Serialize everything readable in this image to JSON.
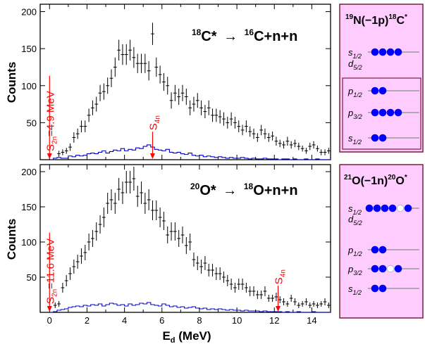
{
  "chart_data": [
    {
      "type": "histogram",
      "reaction_main": "C*",
      "reaction_prefix": "18",
      "reaction_arrow": "→",
      "reaction_product_mass": "16",
      "reaction_product": "C+n+n",
      "ylabel": "Counts",
      "xlim": [
        -0.5,
        15
      ],
      "ylim": [
        0,
        210
      ],
      "yticks": [
        "50",
        "100",
        "150",
        "200"
      ],
      "threshold_1": {
        "label_main": "S",
        "label_sub": "2n",
        "label_rest": "=4.9 MeV",
        "x": 0.0
      },
      "threshold_2": {
        "label_main": "S",
        "label_sub": "4n",
        "x": 5.5
      },
      "threshold_color": "#ff0000",
      "points": {
        "x": [
          0.5,
          0.7,
          0.9,
          1.1,
          1.3,
          1.5,
          1.7,
          1.9,
          2.1,
          2.3,
          2.5,
          2.7,
          2.9,
          3.1,
          3.3,
          3.5,
          3.7,
          3.9,
          4.1,
          4.3,
          4.5,
          4.7,
          4.9,
          5.1,
          5.3,
          5.5,
          5.7,
          5.9,
          6.1,
          6.3,
          6.5,
          6.7,
          6.9,
          7.1,
          7.3,
          7.5,
          7.7,
          7.9,
          8.1,
          8.3,
          8.5,
          8.7,
          8.9,
          9.1,
          9.3,
          9.5,
          9.7,
          9.9,
          10.1,
          10.3,
          10.5,
          10.7,
          10.9,
          11.1,
          11.3,
          11.5,
          11.7,
          11.9,
          12.1,
          12.3,
          12.5,
          12.7,
          12.9,
          13.1,
          13.3,
          13.5,
          13.7,
          13.9,
          14.1,
          14.3,
          14.5,
          14.7,
          14.9
        ],
        "y": [
          8,
          10,
          12,
          17,
          30,
          35,
          45,
          45,
          60,
          70,
          75,
          90,
          92,
          100,
          110,
          125,
          148,
          142,
          142,
          148,
          138,
          130,
          130,
          130,
          120,
          170,
          125,
          115,
          105,
          100,
          80,
          90,
          85,
          90,
          85,
          70,
          75,
          80,
          70,
          65,
          70,
          60,
          60,
          58,
          55,
          50,
          55,
          50,
          45,
          40,
          45,
          38,
          35,
          30,
          40,
          35,
          30,
          32,
          25,
          22,
          20,
          25,
          20,
          22,
          18,
          15,
          12,
          18,
          20,
          15,
          10,
          10,
          12
        ],
        "err": [
          4,
          4,
          4,
          5,
          7,
          7,
          8,
          8,
          9,
          10,
          10,
          11,
          11,
          11,
          12,
          13,
          14,
          14,
          14,
          14,
          14,
          13,
          13,
          13,
          13,
          15,
          13,
          12,
          12,
          12,
          11,
          11,
          11,
          11,
          11,
          10,
          10,
          10,
          10,
          9,
          10,
          9,
          9,
          9,
          9,
          8,
          9,
          8,
          8,
          7,
          8,
          7,
          7,
          6,
          7,
          7,
          6,
          6,
          6,
          5,
          5,
          6,
          5,
          5,
          5,
          4,
          4,
          5,
          5,
          4,
          4,
          4,
          4
        ]
      },
      "hist": {
        "x": [
          0,
          0.2,
          0.4,
          0.6,
          0.8,
          1,
          1.2,
          1.4,
          1.6,
          1.8,
          2,
          2.2,
          2.4,
          2.6,
          2.8,
          3,
          3.2,
          3.4,
          3.6,
          3.8,
          4,
          4.2,
          4.4,
          4.6,
          4.8,
          5,
          5.2,
          5.4,
          5.6,
          5.8,
          6,
          6.2,
          6.4,
          6.6,
          6.8,
          7,
          7.2,
          7.4,
          7.6,
          7.8,
          8,
          8.2,
          8.4,
          8.6,
          8.8,
          9,
          9.2,
          9.4,
          9.6,
          9.8,
          10,
          10.2,
          10.4,
          10.6,
          10.8,
          11,
          11.2,
          11.4,
          11.6,
          11.8,
          12,
          12.2,
          12.4,
          12.6,
          12.8,
          13,
          13.2,
          13.4,
          13.6,
          13.8,
          14,
          14.2,
          14.4,
          14.6,
          14.8
        ],
        "y": [
          0,
          2,
          3,
          2,
          2,
          5,
          4,
          6,
          5,
          6,
          8,
          9,
          8,
          10,
          12,
          9,
          11,
          13,
          12,
          15,
          12,
          14,
          13,
          16,
          15,
          18,
          20,
          17,
          14,
          13,
          12,
          14,
          10,
          9,
          10,
          8,
          7,
          9,
          6,
          5,
          6,
          4,
          5,
          4,
          3,
          4,
          3,
          2,
          3,
          2,
          2,
          3,
          2,
          1,
          2,
          1,
          1,
          2,
          1,
          1,
          1,
          0,
          1,
          1,
          0,
          1,
          0,
          0,
          1,
          0,
          0,
          1,
          0,
          0,
          0
        ]
      }
    },
    {
      "type": "histogram",
      "reaction_main": "O*",
      "reaction_prefix": "20",
      "reaction_arrow": "→",
      "reaction_product_mass": "18",
      "reaction_product": "O+n+n",
      "ylabel": "Counts",
      "xlabel_main": "E",
      "xlabel_sub": "d",
      "xlabel_rest": " (MeV)",
      "xlim": [
        -0.5,
        15
      ],
      "ylim": [
        0,
        210
      ],
      "yticks": [
        "50",
        "100",
        "150",
        "200"
      ],
      "xticks": [
        "0",
        "2",
        "4",
        "6",
        "8",
        "10",
        "12",
        "14"
      ],
      "threshold_1": {
        "label_main": "S",
        "label_sub": "2n",
        "label_rest": "=11.6 MeV",
        "x": 0.0
      },
      "threshold_2": {
        "label_main": "S",
        "label_sub": "4n",
        "x": 12.2
      },
      "threshold_color": "#ff0000",
      "points": {
        "x": [
          0.3,
          0.5,
          0.7,
          0.9,
          1.1,
          1.3,
          1.5,
          1.7,
          1.9,
          2.1,
          2.3,
          2.5,
          2.7,
          2.9,
          3.1,
          3.3,
          3.5,
          3.7,
          3.9,
          4.1,
          4.3,
          4.5,
          4.7,
          4.9,
          5.1,
          5.3,
          5.5,
          5.7,
          5.9,
          6.1,
          6.3,
          6.5,
          6.7,
          6.9,
          7.1,
          7.3,
          7.5,
          7.7,
          7.9,
          8.1,
          8.3,
          8.5,
          8.7,
          8.9,
          9.1,
          9.3,
          9.5,
          9.7,
          9.9,
          10.1,
          10.3,
          10.5,
          10.7,
          10.9,
          11.1,
          11.3,
          11.5,
          11.7,
          11.9,
          12.1,
          12.3,
          12.5,
          12.7,
          12.9,
          13.1,
          13.3,
          13.5,
          13.7,
          13.9,
          14.1,
          14.3,
          14.5,
          14.7,
          14.9
        ],
        "y": [
          10,
          12,
          35,
          45,
          55,
          65,
          72,
          80,
          85,
          100,
          105,
          115,
          125,
          135,
          155,
          160,
          155,
          175,
          170,
          185,
          185,
          190,
          165,
          170,
          155,
          160,
          145,
          145,
          135,
          130,
          110,
          115,
          115,
          105,
          110,
          95,
          100,
          75,
          70,
          65,
          70,
          60,
          60,
          55,
          55,
          50,
          45,
          40,
          35,
          40,
          40,
          35,
          30,
          30,
          25,
          25,
          30,
          20,
          20,
          22,
          18,
          15,
          12,
          20,
          15,
          10,
          12,
          15,
          10,
          12,
          10,
          12,
          15,
          10
        ],
        "err": [
          4,
          4,
          7,
          8,
          9,
          10,
          10,
          11,
          11,
          12,
          12,
          13,
          13,
          14,
          15,
          15,
          15,
          16,
          16,
          16,
          16,
          17,
          15,
          16,
          15,
          15,
          14,
          14,
          14,
          13,
          12,
          13,
          13,
          12,
          12,
          12,
          12,
          10,
          10,
          10,
          10,
          9,
          9,
          9,
          9,
          8,
          8,
          8,
          7,
          8,
          8,
          7,
          7,
          7,
          6,
          6,
          7,
          5,
          5,
          6,
          5,
          5,
          4,
          5,
          5,
          4,
          4,
          5,
          4,
          4,
          4,
          4,
          5,
          4
        ]
      },
      "hist": {
        "x": [
          0,
          0.2,
          0.4,
          0.6,
          0.8,
          1,
          1.2,
          1.4,
          1.6,
          1.8,
          2,
          2.2,
          2.4,
          2.6,
          2.8,
          3,
          3.2,
          3.4,
          3.6,
          3.8,
          4,
          4.2,
          4.4,
          4.6,
          4.8,
          5,
          5.2,
          5.4,
          5.6,
          5.8,
          6,
          6.2,
          6.4,
          6.6,
          6.8,
          7,
          7.2,
          7.4,
          7.6,
          7.8,
          8,
          8.2,
          8.4,
          8.6,
          8.8,
          9,
          9.2,
          9.4,
          9.6,
          9.8,
          10,
          10.2,
          10.4,
          10.6,
          10.8,
          11,
          11.2,
          11.4,
          11.6,
          11.8,
          12,
          12.2,
          12.4,
          12.6,
          12.8,
          13,
          13.2,
          13.4,
          13.6,
          13.8,
          14,
          14.2,
          14.4,
          14.6,
          14.8
        ],
        "y": [
          0,
          1,
          3,
          4,
          5,
          7,
          8,
          9,
          8,
          10,
          9,
          11,
          10,
          12,
          9,
          11,
          13,
          12,
          10,
          11,
          9,
          12,
          10,
          11,
          13,
          12,
          14,
          11,
          10,
          9,
          12,
          10,
          8,
          9,
          7,
          8,
          6,
          7,
          8,
          6,
          5,
          6,
          4,
          5,
          4,
          5,
          4,
          3,
          4,
          3,
          3,
          2,
          3,
          2,
          2,
          2,
          1,
          2,
          1,
          1,
          1,
          1,
          0,
          1,
          0,
          0,
          1,
          0,
          0,
          0,
          1,
          0,
          0,
          0,
          0
        ]
      }
    }
  ],
  "side_panels": [
    {
      "title_mass1": "19",
      "title_part1": "N(−1p)",
      "title_mass2": "18",
      "title_part2": "C",
      "title_star": "*",
      "outer": [
        {
          "label_main": "s",
          "label_sub": "1/2",
          "dots": [
            "full",
            "full",
            "full",
            "full"
          ]
        },
        {
          "label_main": "d",
          "label_sub": "5/2",
          "dots": []
        }
      ],
      "inner": [
        {
          "label_main": "p",
          "label_sub": "1/2",
          "dots": [
            "full",
            "full"
          ]
        },
        {
          "label_main": "p",
          "label_sub": "3/2",
          "dots": [
            "full",
            "full",
            "full",
            "full"
          ]
        },
        {
          "label_main": "s",
          "label_sub": "1/2",
          "dots": [
            "full",
            "full"
          ]
        }
      ]
    },
    {
      "title_mass1": "21",
      "title_part1": "O(−1n)",
      "title_mass2": "20",
      "title_part2": "O",
      "title_star": "*",
      "outer": [
        {
          "label_main": "s",
          "label_sub": "1/2",
          "dots": [
            "full",
            "full",
            "full",
            "full",
            "hole",
            "full"
          ]
        },
        {
          "label_main": "d",
          "label_sub": "5/2",
          "dots": []
        },
        {
          "label_main": "p",
          "label_sub": "1/2",
          "dots": [
            "full",
            "full"
          ]
        },
        {
          "label_main": "p",
          "label_sub": "3/2",
          "dots": [
            "full",
            "full",
            "hole",
            "full"
          ]
        },
        {
          "label_main": "s",
          "label_sub": "1/2",
          "dots": [
            "full",
            "full"
          ]
        }
      ]
    }
  ],
  "colors": {
    "data": "#000000",
    "hist": "#0000cc",
    "threshold": "#ff0000",
    "panel_bg": "#ffccff",
    "panel_border": "#7a1f3d",
    "dot": "#0000ff",
    "level_line": "#999999"
  }
}
